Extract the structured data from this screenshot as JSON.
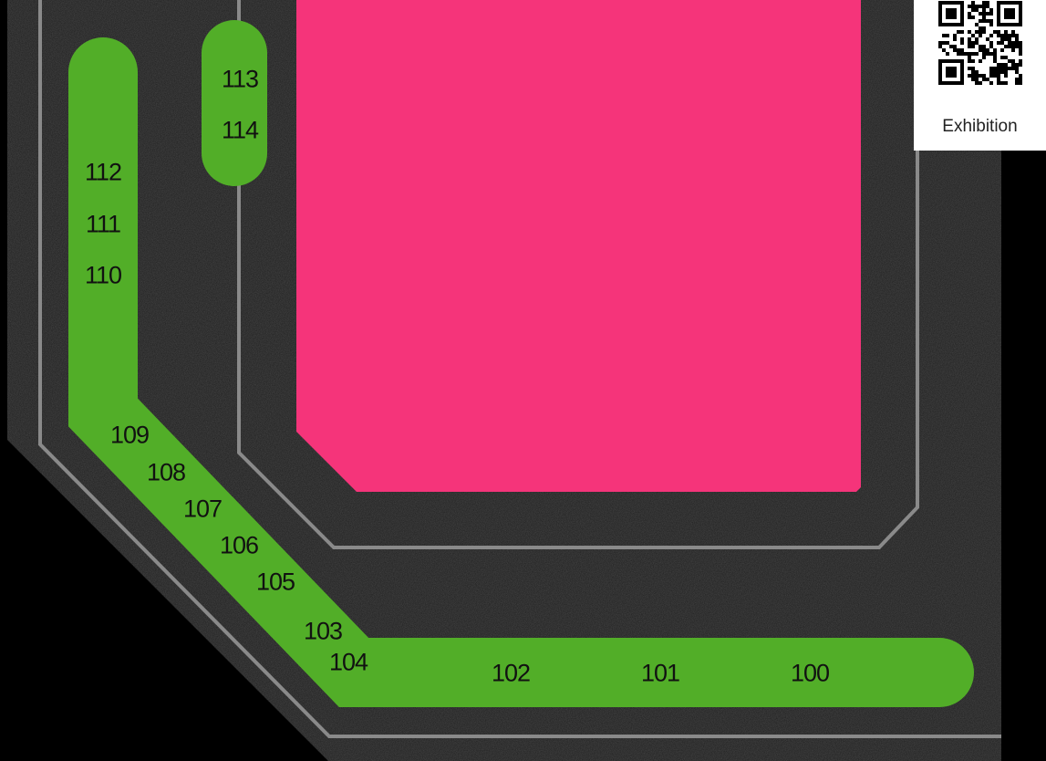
{
  "colors": {
    "background": "#000000",
    "floor": "#1b1b1b",
    "outline": "#8a8a8a",
    "aisle": "#52ae28",
    "feature_area": "#f5347a",
    "qr_panel": "#ffffff"
  },
  "qr": {
    "caption": "Exhibition",
    "icon": "qr-code-icon"
  },
  "booths": [
    {
      "id": "100",
      "label": "100"
    },
    {
      "id": "101",
      "label": "101"
    },
    {
      "id": "102",
      "label": "102"
    },
    {
      "id": "103",
      "label": "103"
    },
    {
      "id": "104",
      "label": "104"
    },
    {
      "id": "105",
      "label": "105"
    },
    {
      "id": "106",
      "label": "106"
    },
    {
      "id": "107",
      "label": "107"
    },
    {
      "id": "108",
      "label": "108"
    },
    {
      "id": "109",
      "label": "109"
    },
    {
      "id": "110",
      "label": "110"
    },
    {
      "id": "111",
      "label": "111"
    },
    {
      "id": "112",
      "label": "112"
    },
    {
      "id": "113",
      "label": "113"
    },
    {
      "id": "114",
      "label": "114"
    }
  ]
}
